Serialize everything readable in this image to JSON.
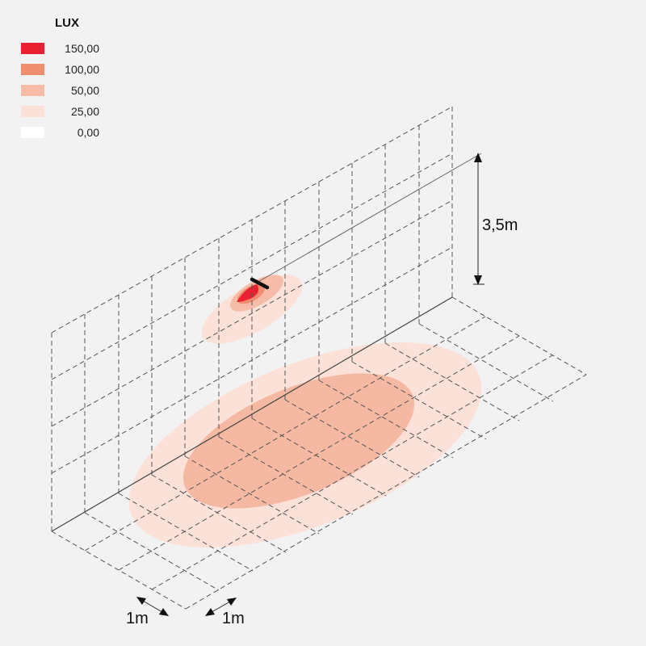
{
  "legend": {
    "title": "LUX",
    "items": [
      {
        "label": "150,00",
        "color": "#e8202f"
      },
      {
        "label": "100,00",
        "color": "#f08c70"
      },
      {
        "label": "50,00",
        "color": "#f6bca8"
      },
      {
        "label": "25,00",
        "color": "#fbe1d8"
      },
      {
        "label": "0,00",
        "color": "#ffffff"
      }
    ]
  },
  "dimensions": {
    "height_label": "3,5m",
    "grid_x_label": "1m",
    "grid_y_label": "1m"
  }
}
